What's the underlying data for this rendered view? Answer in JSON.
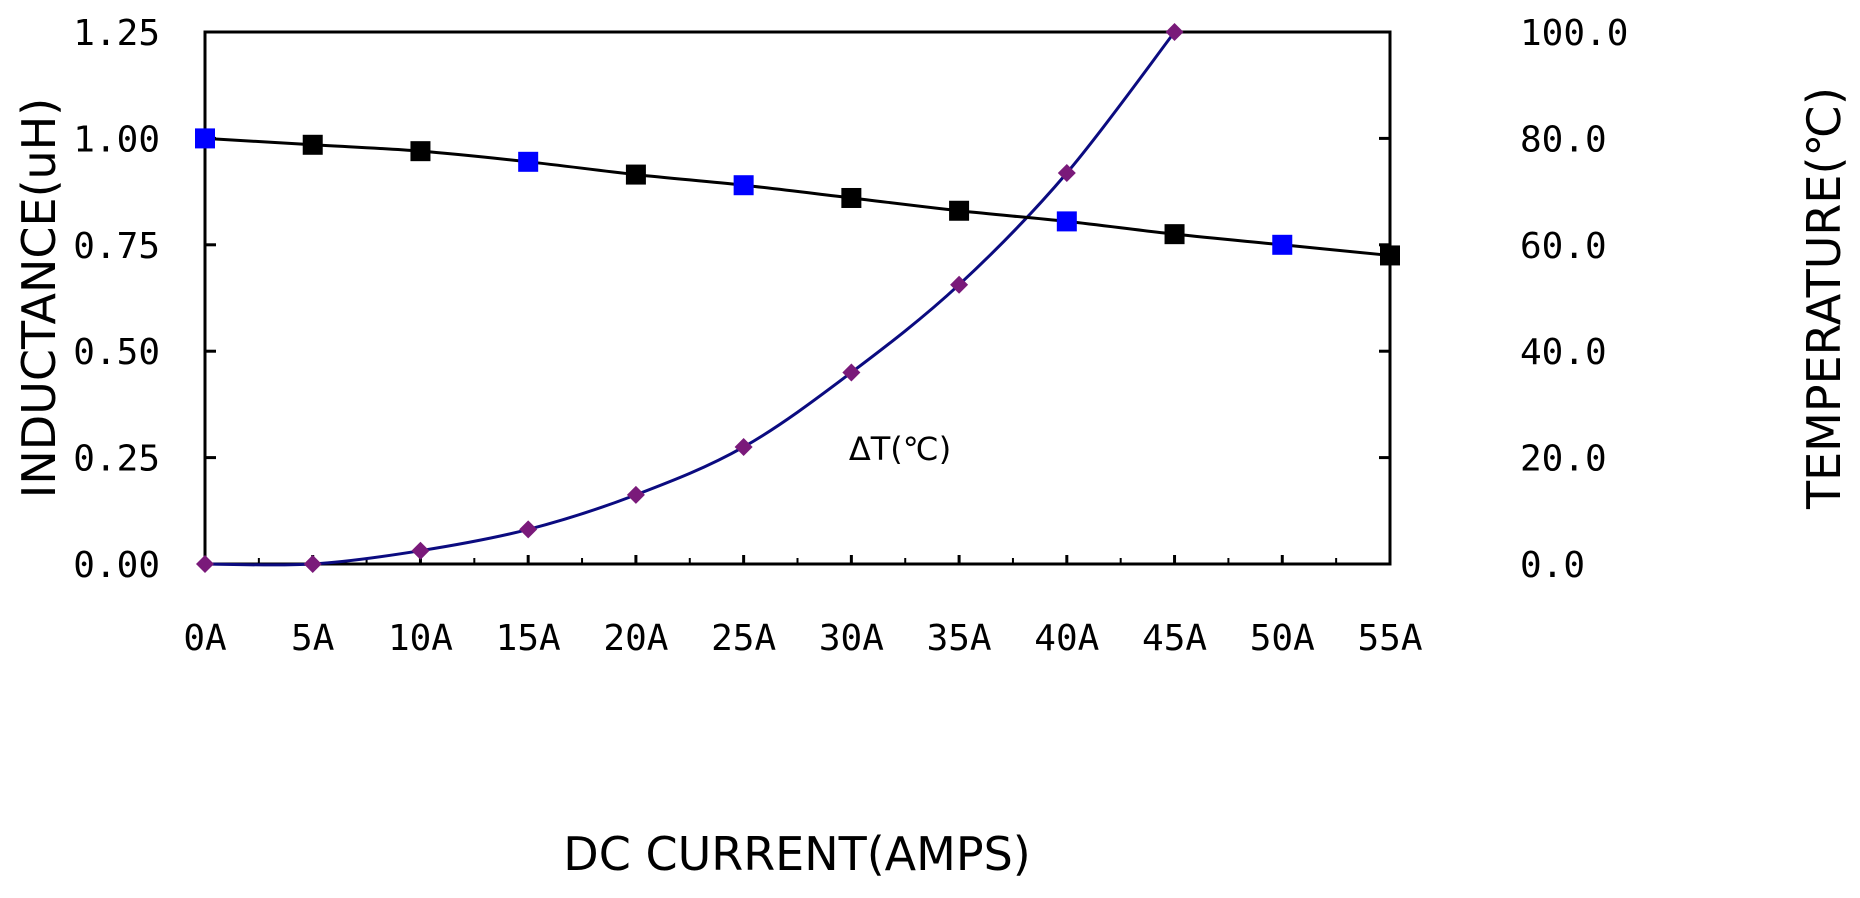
{
  "chart_data": {
    "type": "line",
    "xlabel": "DC CURRENT(AMPS)",
    "ylabel_left": "INDUCTANCE(uH)",
    "ylabel_right": "TEMPERATURE(℃)",
    "x_categories": [
      "0A",
      "5A",
      "10A",
      "15A",
      "20A",
      "25A",
      "30A",
      "35A",
      "40A",
      "45A",
      "50A",
      "55A"
    ],
    "x_values": [
      0,
      5,
      10,
      15,
      20,
      25,
      30,
      35,
      40,
      45,
      50,
      55
    ],
    "xlim": [
      0,
      55
    ],
    "ylim_left": [
      0,
      1.25
    ],
    "ylim_right": [
      0,
      100
    ],
    "y_left_ticks": [
      "0.00",
      "0.25",
      "0.50",
      "0.75",
      "1.00",
      "1.25"
    ],
    "y_right_ticks": [
      "0.0",
      "20.0",
      "40.0",
      "60.0",
      "80.0",
      "100.0"
    ],
    "grid": false,
    "annotation": "ΔT(℃)",
    "series": [
      {
        "axis": "left",
        "color": "#000000",
        "marker": "square",
        "x": [
          0,
          5,
          10,
          15,
          20,
          25,
          30,
          35,
          40,
          45,
          50,
          55
        ],
        "values": [
          1.0,
          0.985,
          0.97,
          0.945,
          0.915,
          0.89,
          0.86,
          0.83,
          0.805,
          0.775,
          0.75,
          0.725
        ],
        "marker_colors": [
          "#0000ff",
          "#000000",
          "#000000",
          "#0000ff",
          "#000000",
          "#0000ff",
          "#000000",
          "#000000",
          "#0000ff",
          "#000000",
          "#0000ff",
          "#000000"
        ]
      },
      {
        "axis": "right",
        "color": "#0b0b80",
        "marker_color": "#7a1a7a",
        "marker": "diamond",
        "x": [
          0,
          5,
          10,
          15,
          20,
          25,
          30,
          35,
          40,
          45
        ],
        "values": [
          0,
          0,
          2.5,
          6.5,
          13,
          22,
          36,
          52.5,
          73.5,
          100
        ]
      }
    ]
  }
}
